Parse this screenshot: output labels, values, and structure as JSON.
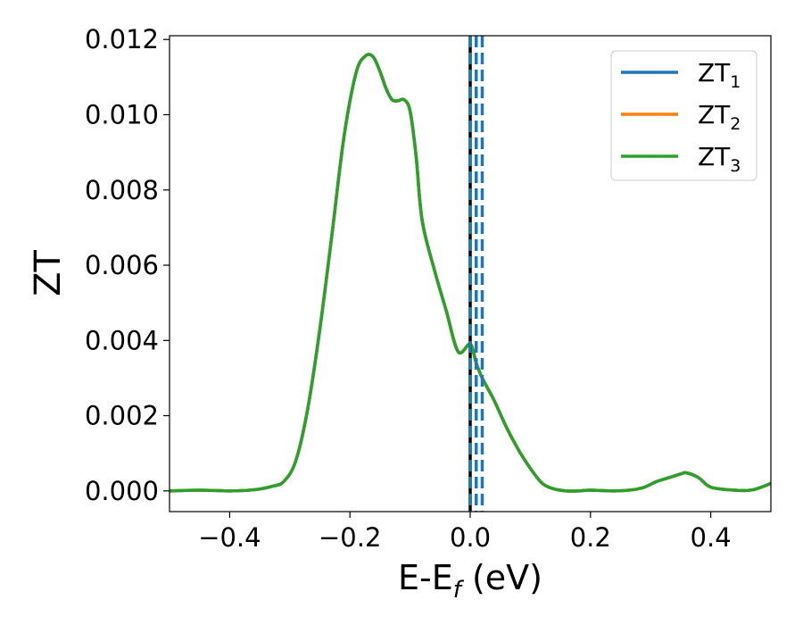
{
  "chart_data": {
    "type": "line",
    "xlabel": {
      "main": "E-E",
      "sub": "f",
      "unit": " (eV)"
    },
    "ylabel": "ZT",
    "xlim": [
      -0.5,
      0.5
    ],
    "ylim": [
      -0.00055,
      0.0121
    ],
    "xticks": [
      -0.4,
      -0.2,
      0.0,
      0.2,
      0.4
    ],
    "xtick_labels": [
      "−0.4",
      "−0.2",
      "0.0",
      "0.2",
      "0.4"
    ],
    "yticks": [
      0.0,
      0.002,
      0.004,
      0.006,
      0.008,
      0.01,
      0.012
    ],
    "ytick_labels": [
      "0.000",
      "0.002",
      "0.004",
      "0.006",
      "0.008",
      "0.010",
      "0.012"
    ],
    "grid": false,
    "legend_position": "top-right",
    "series": [
      {
        "name": "ZT",
        "sub": "1",
        "color": "#1f77b4",
        "x": [
          -0.5,
          -0.45,
          -0.4,
          -0.36,
          -0.33,
          -0.31,
          -0.29,
          -0.27,
          -0.25,
          -0.23,
          -0.21,
          -0.19,
          -0.175,
          -0.162,
          -0.15,
          -0.14,
          -0.13,
          -0.12,
          -0.11,
          -0.1,
          -0.09,
          -0.08,
          -0.06,
          -0.04,
          -0.02,
          0.0,
          0.01,
          0.02,
          0.04,
          0.06,
          0.08,
          0.1,
          0.12,
          0.14,
          0.16,
          0.18,
          0.2,
          0.24,
          0.27,
          0.29,
          0.31,
          0.33,
          0.35,
          0.36,
          0.38,
          0.4,
          0.44,
          0.47,
          0.5
        ],
        "y": [
          0.0,
          2e-05,
          0.0,
          3e-05,
          0.00012,
          0.00025,
          0.0008,
          0.0022,
          0.0043,
          0.0068,
          0.0094,
          0.0111,
          0.01155,
          0.01155,
          0.01115,
          0.0107,
          0.0104,
          0.01037,
          0.0104,
          0.0101,
          0.0089,
          0.0072,
          0.0059,
          0.0048,
          0.0037,
          0.0039,
          0.0034,
          0.003,
          0.0024,
          0.0017,
          0.0011,
          0.0006,
          0.0002,
          5e-05,
          0.0,
          0.0,
          2e-05,
          0.0,
          3e-05,
          0.0001,
          0.00025,
          0.00035,
          0.00045,
          0.00048,
          0.00035,
          0.0001,
          2e-05,
          3e-05,
          0.0002
        ]
      },
      {
        "name": "ZT",
        "sub": "2",
        "color": "#ff7f0e",
        "x": [
          -0.5,
          -0.45,
          -0.4,
          -0.36,
          -0.33,
          -0.31,
          -0.29,
          -0.27,
          -0.25,
          -0.23,
          -0.21,
          -0.19,
          -0.175,
          -0.162,
          -0.15,
          -0.14,
          -0.13,
          -0.12,
          -0.11,
          -0.1,
          -0.09,
          -0.08,
          -0.06,
          -0.04,
          -0.02,
          0.0,
          0.01,
          0.02,
          0.04,
          0.06,
          0.08,
          0.1,
          0.12,
          0.14,
          0.16,
          0.18,
          0.2,
          0.24,
          0.27,
          0.29,
          0.31,
          0.33,
          0.35,
          0.36,
          0.38,
          0.4,
          0.44,
          0.47,
          0.5
        ],
        "y": [
          0.0,
          2e-05,
          0.0,
          3e-05,
          0.00012,
          0.00025,
          0.0008,
          0.0022,
          0.0043,
          0.0068,
          0.0094,
          0.0111,
          0.01155,
          0.01155,
          0.01115,
          0.0107,
          0.0104,
          0.01037,
          0.0104,
          0.0101,
          0.0089,
          0.0072,
          0.0059,
          0.0048,
          0.0037,
          0.0039,
          0.0034,
          0.003,
          0.0024,
          0.0017,
          0.0011,
          0.0006,
          0.0002,
          5e-05,
          0.0,
          0.0,
          2e-05,
          0.0,
          3e-05,
          0.0001,
          0.00025,
          0.00035,
          0.00045,
          0.00048,
          0.00035,
          0.0001,
          2e-05,
          3e-05,
          0.0002
        ]
      },
      {
        "name": "ZT",
        "sub": "3",
        "color": "#2ca02c",
        "x": [
          -0.5,
          -0.45,
          -0.4,
          -0.36,
          -0.33,
          -0.31,
          -0.29,
          -0.27,
          -0.25,
          -0.23,
          -0.21,
          -0.19,
          -0.175,
          -0.162,
          -0.15,
          -0.14,
          -0.13,
          -0.12,
          -0.11,
          -0.1,
          -0.09,
          -0.08,
          -0.06,
          -0.04,
          -0.02,
          0.0,
          0.01,
          0.02,
          0.04,
          0.06,
          0.08,
          0.1,
          0.12,
          0.14,
          0.16,
          0.18,
          0.2,
          0.24,
          0.27,
          0.29,
          0.31,
          0.33,
          0.35,
          0.36,
          0.38,
          0.4,
          0.44,
          0.47,
          0.5
        ],
        "y": [
          0.0,
          2e-05,
          0.0,
          3e-05,
          0.00012,
          0.00025,
          0.0008,
          0.0022,
          0.0043,
          0.0068,
          0.0094,
          0.0111,
          0.01155,
          0.01155,
          0.01115,
          0.0107,
          0.0104,
          0.01037,
          0.0104,
          0.0101,
          0.0089,
          0.0072,
          0.0059,
          0.0048,
          0.0037,
          0.0039,
          0.0034,
          0.003,
          0.0024,
          0.0017,
          0.0011,
          0.0006,
          0.0002,
          5e-05,
          0.0,
          0.0,
          2e-05,
          0.0,
          3e-05,
          0.0001,
          0.00025,
          0.00035,
          0.00045,
          0.00048,
          0.00035,
          0.0001,
          2e-05,
          3e-05,
          0.0002
        ]
      }
    ],
    "vlines": [
      {
        "x": 0.0,
        "color": "#000000",
        "style": "solid"
      },
      {
        "x": 0.0,
        "color": "#1f77b4",
        "style": "dashed"
      },
      {
        "x": 0.01,
        "color": "#1f77b4",
        "style": "dashed"
      },
      {
        "x": 0.02,
        "color": "#1f77b4",
        "style": "dashed"
      }
    ]
  }
}
